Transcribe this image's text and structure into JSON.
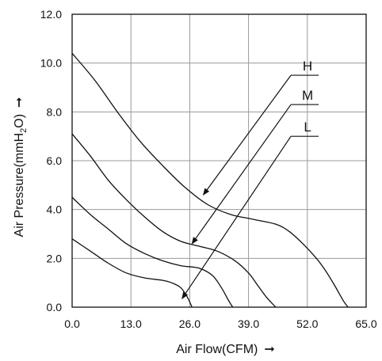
{
  "chart_data": {
    "type": "line",
    "title": "",
    "xlabel": "Air Flow(CFM)",
    "xlabel_arrow": "➞",
    "ylabel": "Air Pressure(mmH",
    "ylabel_sub": "2",
    "ylabel_tail": "O)",
    "ylabel_arrow": "➞",
    "xlim": [
      0,
      65
    ],
    "ylim": [
      0,
      12
    ],
    "x_ticks": [
      0,
      13,
      26,
      39,
      52,
      65
    ],
    "x_tick_labels": [
      "0.0",
      "13.0",
      "26.0",
      "39.0",
      "52.0",
      "65.0"
    ],
    "y_ticks": [
      0,
      2,
      4,
      6,
      8,
      10,
      12
    ],
    "y_tick_labels": [
      "0.0",
      "2.0",
      "4.0",
      "6.0",
      "8.0",
      "10.0",
      "12.0"
    ],
    "grid": true,
    "series": [
      {
        "name": "H",
        "x": [
          0,
          5,
          10,
          15,
          20,
          25,
          30,
          35,
          40,
          45,
          48,
          51,
          54,
          56,
          58,
          60,
          61
        ],
        "y": [
          10.4,
          9.3,
          8.0,
          6.8,
          5.8,
          4.9,
          4.2,
          3.8,
          3.6,
          3.4,
          3.1,
          2.6,
          2.0,
          1.5,
          0.9,
          0.25,
          0.0
        ]
      },
      {
        "name": "M",
        "x": [
          0,
          4,
          8,
          12,
          16,
          20,
          24,
          28,
          32,
          36,
          39,
          41,
          43,
          45
        ],
        "y": [
          7.1,
          6.2,
          5.2,
          4.4,
          3.7,
          3.1,
          2.7,
          2.5,
          2.3,
          1.9,
          1.4,
          0.9,
          0.4,
          0.0
        ]
      },
      {
        "name": "L",
        "x": [
          0,
          4,
          8,
          12,
          16,
          20,
          24,
          28,
          31,
          33,
          34.5,
          35.5
        ],
        "y": [
          4.5,
          3.8,
          3.2,
          2.6,
          2.2,
          1.9,
          1.7,
          1.6,
          1.3,
          0.8,
          0.3,
          0.0
        ]
      },
      {
        "name": "",
        "x": [
          0,
          4,
          8,
          12,
          16,
          20,
          22,
          24,
          25.5,
          26.5
        ],
        "y": [
          2.8,
          2.3,
          1.8,
          1.4,
          1.2,
          1.1,
          1.0,
          0.8,
          0.4,
          0.0
        ]
      }
    ],
    "annotations": [
      {
        "text": "H",
        "label_x": 54.5,
        "label_y": 9.5,
        "tip_x": 29,
        "tip_y": 4.6
      },
      {
        "text": "M",
        "label_x": 54.5,
        "label_y": 8.3,
        "tip_x": 26.5,
        "tip_y": 2.6
      },
      {
        "text": "L",
        "label_x": 54.5,
        "label_y": 7.0,
        "tip_x": 24.3,
        "tip_y": 0.35
      }
    ]
  }
}
